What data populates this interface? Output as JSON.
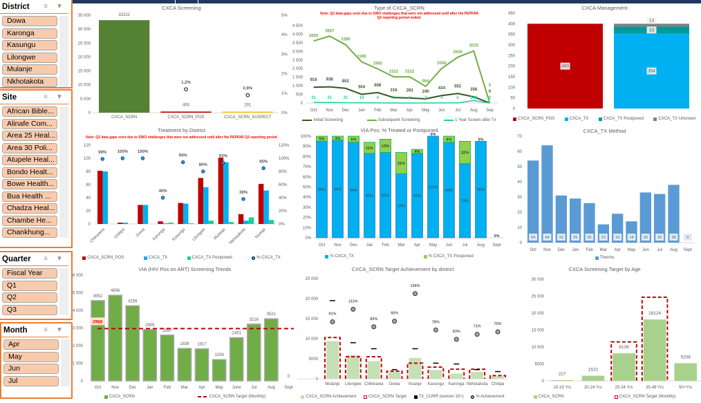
{
  "slicers": [
    {
      "title": "District",
      "items": [
        "Dowa",
        "Karonga",
        "Kasungu",
        "Lilongwe",
        "Mulanje",
        "Nkhotakota"
      ]
    },
    {
      "title": "Site",
      "items": [
        "African Bible...",
        "Alinafe Com...",
        "Area 25 Heal...",
        "Area 30 Poli...",
        "Atupele Heal...",
        "Bondo Healt...",
        "Bowe Health...",
        "Bua Health ...",
        "Chadza Heal...",
        "Chambe He...",
        "Chankhung..."
      ]
    },
    {
      "title": "Quarter",
      "items": [
        "Fiscal Year",
        "Q1",
        "Q2",
        "Q3"
      ]
    },
    {
      "title": "Month",
      "items": [
        "Apr",
        "May",
        "Jun",
        "Jul"
      ]
    }
  ],
  "colors": {
    "header": "#1F3864",
    "slicer_accent": "#ED7D31",
    "slicer_item": "#F8CBAD"
  },
  "note": "Note: Q2 data gaps exist due to SWO challenges that were not addressed until after the PEPFAR Q2 reporting period ended.",
  "note_short": "Note: Q2 data gaps exist due to SWO challenges that were not addressed until after the PEPFAR Q2 reporting period",
  "chart_data": [
    {
      "type": "bar",
      "title": "CXCA Screening",
      "categories": [
        "CXCA_SCRN",
        "CXCA_SCRN_POS",
        "CXCA_SCRN_SUSPECT"
      ],
      "values": [
        33222,
        400,
        291
      ],
      "colors": [
        "#548235",
        "#C00000",
        "#FFC000"
      ],
      "percent": [
        null,
        1.2,
        0.9
      ],
      "percent_labels": [
        "",
        "1.2%",
        "0.9%"
      ],
      "ylim": [
        0,
        35000
      ],
      "yticks": [
        "0",
        "5 000",
        "10 000",
        "15 000",
        "20 000",
        "25 000",
        "30 000",
        "35 000"
      ],
      "y2lim": [
        0,
        5
      ],
      "y2ticks": [
        "0%",
        "1%",
        "2%",
        "3%",
        "4%",
        "5%"
      ]
    },
    {
      "type": "line",
      "title": "Type of CXCA_SCRN",
      "categories": [
        "Oct",
        "Nov",
        "Dec",
        "Jan",
        "Feb",
        "Mar",
        "Apr",
        "May",
        "Jun",
        "Jul",
        "Aug",
        "Sep"
      ],
      "ylim": [
        0,
        4500
      ],
      "yticks": [
        "0",
        "500",
        "1 000",
        "1 500",
        "2 000",
        "2 500",
        "3 000",
        "3 500",
        "4 000",
        "4 500"
      ],
      "series": [
        {
          "name": "Initial Screening",
          "color": "#375623",
          "values": [
            916,
            938,
            852,
            504,
            608,
            316,
            293,
            240,
            434,
            552,
            356,
            0
          ]
        },
        {
          "name": "Subsequent Screening",
          "color": "#70AD47",
          "values": [
            3605,
            3887,
            3386,
            2395,
            1985,
            1522,
            1522,
            964,
            2008,
            2659,
            3025,
            0
          ]
        },
        {
          "name": "1 Year Screen after Tx",
          "color": "#1ACFA0",
          "values": [
            31,
            31,
            21,
            10,
            4,
            0,
            2,
            2,
            4,
            5,
            140,
            0
          ]
        }
      ]
    },
    {
      "type": "bar",
      "stacked": true,
      "title": "CXCA Management",
      "ylim": [
        0,
        450
      ],
      "yticks": [
        "0",
        "50",
        "100",
        "150",
        "200",
        "250",
        "300",
        "350",
        "400",
        "450"
      ],
      "series": [
        {
          "name": "CXCA_SCRN_POS",
          "color": "#C00000",
          "values": [
            400,
            0
          ]
        },
        {
          "name": "CXCA_TX",
          "color": "#00B0F0",
          "values": [
            0,
            354
          ]
        },
        {
          "name": "CXCA_TX Postponed",
          "color": "#00999A",
          "values": [
            0,
            33
          ]
        },
        {
          "name": "CXCA_TX Unknown",
          "color": "#808080",
          "values": [
            0,
            13
          ]
        }
      ]
    },
    {
      "type": "bar",
      "title": "Treatment by District",
      "categories": [
        "Chikwawa",
        "Chitipa",
        "Dowa",
        "Karonga",
        "Kasungu",
        "Lilongwe",
        "Mulanje",
        "Nkhotakota",
        "Nsanje"
      ],
      "ylim": [
        0,
        120
      ],
      "yticks": [
        "0",
        "20",
        "40",
        "60",
        "80",
        "100",
        "120"
      ],
      "y2lim": [
        0,
        120
      ],
      "y2ticks": [
        "0%",
        "20%",
        "40%",
        "60%",
        "80%",
        "100%",
        "120%"
      ],
      "series": [
        {
          "name": "CXCA_SCRN_POS",
          "color": "#C00000",
          "values": [
            81,
            2,
            29,
            4,
            32,
            70,
            101,
            15,
            61
          ]
        },
        {
          "name": "CXCA_TX",
          "color": "#00B0F0",
          "values": [
            80,
            2,
            29,
            1,
            31,
            56,
            94,
            5,
            51
          ]
        },
        {
          "name": "CXCA_TX Postponed",
          "color": "#1ACF9A",
          "values": [
            0,
            0,
            0,
            2,
            1,
            5,
            3,
            10,
            6
          ]
        },
        {
          "name": "% CXCA_TX",
          "color": "#00B0F0",
          "type": "scatter",
          "values": [
            99,
            100,
            100,
            40,
            94,
            80,
            93,
            38,
            85
          ],
          "labels": [
            "99%",
            "100%",
            "100%",
            "40%",
            "94%",
            "80%",
            "93%",
            "38%",
            "85%"
          ]
        }
      ]
    },
    {
      "type": "bar",
      "stacked": true,
      "title": "VIA Pos; % Treated or Postponed",
      "categories": [
        "Oct",
        "Nov",
        "Dec",
        "Jan",
        "Feb",
        "Mar",
        "Apr",
        "May",
        "Jun",
        "Jul",
        "Aug",
        "Sept"
      ],
      "ylim": [
        0,
        100
      ],
      "yticks": [
        "0%",
        "10%",
        "20%",
        "30%",
        "40%",
        "50%",
        "60%",
        "70%",
        "80%",
        "90%",
        "100%"
      ],
      "series": [
        {
          "name": "% CXCA_TX",
          "color": "#00B0F0",
          "values": [
            95,
            96,
            94,
            83,
            84,
            63,
            83,
            100,
            94,
            73,
            95,
            0
          ],
          "labels": [
            "95%",
            "96%",
            "94%",
            "83%",
            "84%",
            "63%",
            "83%",
            "100%",
            "94%",
            "73%",
            "95%",
            ""
          ]
        },
        {
          "name": "% CXCA_TX Postponed",
          "color": "#92D050",
          "values": [
            5,
            4,
            6,
            11,
            13,
            21,
            4,
            0,
            6,
            22,
            0,
            0
          ],
          "labels": [
            "5%",
            "4%",
            "6%",
            "11%",
            "13%",
            "21%",
            "4%",
            "0%",
            "6%",
            "22%",
            "0%",
            "0%"
          ]
        }
      ]
    },
    {
      "type": "bar",
      "title": "CXCA_TX Method",
      "categories": [
        "Oct",
        "Nov",
        "Dec",
        "Jan",
        "Feb",
        "Mar",
        "Apr",
        "May",
        "Jun",
        "Jul",
        "Aug",
        "Sept"
      ],
      "ylim": [
        0,
        70
      ],
      "yticks": [
        "0",
        "10",
        "20",
        "30",
        "40",
        "50",
        "60",
        "70"
      ],
      "series": [
        {
          "name": "Thermo",
          "color": "#5B9BD5",
          "values": [
            54,
            64,
            31,
            29,
            26,
            12,
            19,
            14,
            33,
            32,
            38,
            0
          ]
        }
      ]
    },
    {
      "type": "bar",
      "title": "VIA (HIV Pos on ART) Screening Trends",
      "categories": [
        "Oct",
        "Nov",
        "Dec",
        "Jan",
        "Feb",
        "Mar",
        "Apr",
        "May",
        "June",
        "Jul",
        "Aug",
        "Sept"
      ],
      "ylim": [
        0,
        6000
      ],
      "yticks": [
        "0",
        "1 000",
        "2 000",
        "3 000",
        "4 000",
        "5 000",
        "6 000"
      ],
      "series": [
        {
          "name": "CXCA_SCRN",
          "color": "#70AD47",
          "values": [
            4552,
            4856,
            4259,
            2909,
            2597,
            1838,
            1817,
            1206,
            2451,
            3216,
            3521,
            0
          ]
        }
      ],
      "target": {
        "name": "CXCA_SCRN Target (Monthly)",
        "value": 2968,
        "color": "#C00000"
      }
    },
    {
      "type": "bar",
      "title": "CXCA_SCRN Target Achievement by district",
      "categories": [
        "Mulanje",
        "Lilongwe",
        "Chikwawa",
        "Dowa",
        "Nsanje",
        "Kasungu",
        "Karonga",
        "Nkhotakota",
        "Chitipa"
      ],
      "ylim": [
        0,
        25000
      ],
      "yticks": [
        "0",
        "5000",
        "10 000",
        "15 000",
        "20 000",
        "25 000"
      ],
      "y2lim": [
        0,
        160
      ],
      "y2ticks": [
        "0%",
        "20%",
        "40%",
        "60%",
        "80%",
        "100%",
        "120%",
        "140%",
        "160%"
      ],
      "series": [
        {
          "name": "CXCA_SCRN Achievement",
          "color": "#C5E0B4",
          "values": [
            9400,
            5900,
            4400,
            1700,
            5200,
            2200,
            1300,
            1700,
            600
          ]
        },
        {
          "name": "CXCA_SCRN Target",
          "color": "#C00000",
          "values": [
            10300,
            5500,
            5500,
            1900,
            3900,
            2900,
            2400,
            2400,
            800
          ]
        },
        {
          "name": "TX_CURR (women 15+)",
          "color": "#000000",
          "values": [
            19500,
            9000,
            7500,
            2300,
            7500,
            3900,
            3700,
            2300,
            1800
          ]
        },
        {
          "name": "% Achievement",
          "color": "#A5A5A5",
          "values": [
            91,
            111,
            83,
            92,
            136,
            78,
            63,
            71,
            75
          ],
          "labels": [
            "91%",
            "111%",
            "83%",
            "92%",
            "136%",
            "78%",
            "63%",
            "71%",
            "75%"
          ]
        }
      ]
    },
    {
      "type": "bar",
      "title": "CXCA Screening Target by Age",
      "categories": [
        "15-19 Yrs",
        "20-24 Yrs",
        "25-34 Yrs",
        "35-49 Yrs",
        "50+Yrs"
      ],
      "ylim": [
        0,
        30000
      ],
      "yticks": [
        "0",
        "5000",
        "10 000",
        "15 000",
        "20 000",
        "25 000",
        "30 000"
      ],
      "series": [
        {
          "name": "CXCA_SCRN",
          "color": "#A9D18E",
          "values": [
            227,
            1522,
            8139,
            18124,
            5208
          ]
        },
        {
          "name": "CXCA_SCRN Target (Monthly)",
          "color": "#C00000",
          "values": [
            null,
            null,
            11500,
            24700,
            null
          ]
        }
      ]
    }
  ]
}
